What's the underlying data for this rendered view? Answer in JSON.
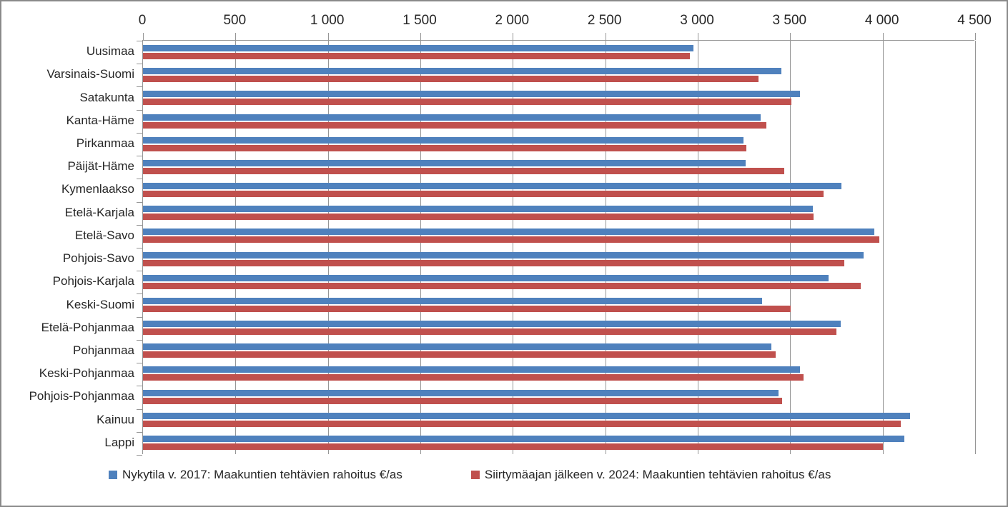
{
  "chart_data": {
    "type": "bar",
    "orientation": "horizontal",
    "title": "",
    "categories": [
      "Uusimaa",
      "Varsinais-Suomi",
      "Satakunta",
      "Kanta-Häme",
      "Pirkanmaa",
      "Päijät-Häme",
      "Kymenlaakso",
      "Etelä-Karjala",
      "Etelä-Savo",
      "Pohjois-Savo",
      "Pohjois-Karjala",
      "Keski-Suomi",
      "Etelä-Pohjanmaa",
      "Pohjanmaa",
      "Keski-Pohjanmaa",
      "Pohjois-Pohjanmaa",
      "Kainuu",
      "Lappi"
    ],
    "series": [
      {
        "name": "Nykytila v. 2017: Maakuntien tehtävien rahoitus €/as",
        "color": "#4F81BD",
        "values": [
          2980,
          3455,
          3555,
          3345,
          3250,
          3260,
          3780,
          3625,
          3960,
          3900,
          3710,
          3350,
          3775,
          3400,
          3555,
          3440,
          4150,
          4120
        ]
      },
      {
        "name": "Siirtymäajan jälkeen v. 2024: Maakuntien tehtävien rahoitus €/as",
        "color": "#C0504D",
        "values": [
          2960,
          3330,
          3510,
          3375,
          3265,
          3470,
          3685,
          3630,
          3985,
          3795,
          3885,
          3505,
          3755,
          3425,
          3575,
          3460,
          4100,
          4005
        ]
      }
    ],
    "x_axis": {
      "min": 0,
      "max": 4500,
      "step": 500,
      "tick_labels": [
        "0",
        "500",
        "1 000",
        "1 500",
        "2 000",
        "2 500",
        "3 000",
        "3 500",
        "4 000",
        "4 500"
      ]
    },
    "grid": true,
    "legend_position": "bottom"
  },
  "colors": {
    "axis": "#969696",
    "grid": "#969696",
    "text": "#262626",
    "frame_border": "#8a8a8a"
  }
}
